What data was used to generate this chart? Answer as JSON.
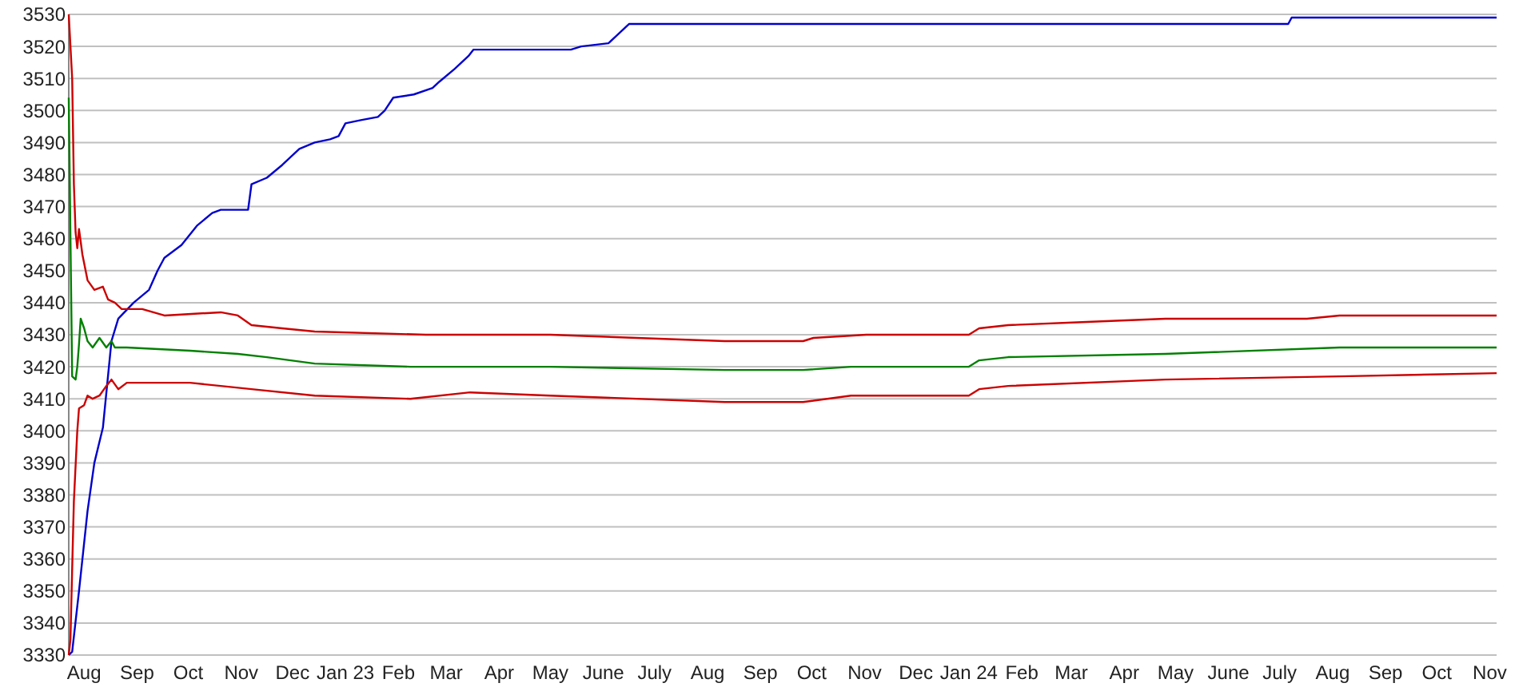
{
  "chart_data": {
    "type": "line",
    "grid": "y",
    "marker": "none",
    "line_style": "solid",
    "xlim": [
      "2022-07-23",
      "2024-11-05"
    ],
    "ylim": [
      3330,
      3530
    ],
    "yticks": [
      3330,
      3340,
      3350,
      3360,
      3370,
      3380,
      3390,
      3400,
      3410,
      3420,
      3430,
      3440,
      3450,
      3460,
      3470,
      3480,
      3490,
      3500,
      3510,
      3520,
      3530
    ],
    "xticks": [
      {
        "value": "2022-08-01",
        "label": "Aug"
      },
      {
        "value": "2022-09-01",
        "label": "Sep"
      },
      {
        "value": "2022-10-01",
        "label": "Oct"
      },
      {
        "value": "2022-11-01",
        "label": "Nov"
      },
      {
        "value": "2022-12-01",
        "label": "Dec"
      },
      {
        "value": "2023-01-01",
        "label": "Jan 23"
      },
      {
        "value": "2023-02-01",
        "label": "Feb"
      },
      {
        "value": "2023-03-01",
        "label": "Mar"
      },
      {
        "value": "2023-04-01",
        "label": "Apr"
      },
      {
        "value": "2023-05-01",
        "label": "May"
      },
      {
        "value": "2023-06-01",
        "label": "June"
      },
      {
        "value": "2023-07-01",
        "label": "July"
      },
      {
        "value": "2023-08-01",
        "label": "Aug"
      },
      {
        "value": "2023-09-01",
        "label": "Sep"
      },
      {
        "value": "2023-10-01",
        "label": "Oct"
      },
      {
        "value": "2023-11-01",
        "label": "Nov"
      },
      {
        "value": "2023-12-01",
        "label": "Dec"
      },
      {
        "value": "2024-01-01",
        "label": "Jan 24"
      },
      {
        "value": "2024-02-01",
        "label": "Feb"
      },
      {
        "value": "2024-03-01",
        "label": "Mar"
      },
      {
        "value": "2024-04-01",
        "label": "Apr"
      },
      {
        "value": "2024-05-01",
        "label": "May"
      },
      {
        "value": "2024-06-01",
        "label": "June"
      },
      {
        "value": "2024-07-01",
        "label": "July"
      },
      {
        "value": "2024-08-01",
        "label": "Aug"
      },
      {
        "value": "2024-09-01",
        "label": "Sep"
      },
      {
        "value": "2024-10-01",
        "label": "Oct"
      },
      {
        "value": "2024-11-01",
        "label": "Nov"
      }
    ],
    "series": [
      {
        "color": "#0000cc",
        "x": [
          "2022-07-23",
          "2022-07-25",
          "2022-07-29",
          "2022-08-03",
          "2022-08-07",
          "2022-08-12",
          "2022-08-17",
          "2022-08-21",
          "2022-08-30",
          "2022-09-08",
          "2022-09-13",
          "2022-09-17",
          "2022-09-27",
          "2022-10-06",
          "2022-10-15",
          "2022-10-20",
          "2022-11-05",
          "2022-11-07",
          "2022-11-16",
          "2022-11-25",
          "2022-12-05",
          "2022-12-14",
          "2022-12-23",
          "2022-12-28",
          "2023-01-01",
          "2023-01-10",
          "2023-01-20",
          "2023-01-24",
          "2023-01-29",
          "2023-02-10",
          "2023-02-21",
          "2023-02-25",
          "2023-03-06",
          "2023-03-14",
          "2023-03-17",
          "2023-05-13",
          "2023-05-19",
          "2023-06-04",
          "2023-06-08",
          "2023-06-14",
          "2023-06-16",
          "2024-07-06",
          "2024-07-08",
          "2024-11-05"
        ],
        "values": [
          3330,
          3331,
          3350,
          3375,
          3390,
          3401,
          3428,
          3435,
          3440,
          3444,
          3450,
          3454,
          3458,
          3464,
          3468,
          3469,
          3469,
          3477,
          3479,
          3483,
          3488,
          3490,
          3491,
          3492,
          3496,
          3497,
          3498,
          3500,
          3504,
          3505,
          3507,
          3509,
          3513,
          3517,
          3519,
          3519,
          3520,
          3521,
          3523,
          3526,
          3527,
          3527,
          3529,
          3529
        ]
      },
      {
        "color": "#cc0000",
        "x": [
          "2022-07-23",
          "2022-07-25",
          "2022-07-26",
          "2022-07-27",
          "2022-07-28",
          "2022-07-29",
          "2022-07-31",
          "2022-08-03",
          "2022-08-07",
          "2022-08-12",
          "2022-08-15",
          "2022-08-19",
          "2022-08-23",
          "2022-09-04",
          "2022-09-17",
          "2022-10-20",
          "2022-10-30",
          "2022-11-07",
          "2022-11-25",
          "2022-12-14",
          "2023-02-17",
          "2023-03-15",
          "2023-05-01",
          "2023-08-11",
          "2023-09-26",
          "2023-10-02",
          "2023-11-02",
          "2024-01-01",
          "2024-01-07",
          "2024-01-24",
          "2024-03-10",
          "2024-04-25",
          "2024-07-17",
          "2024-08-05",
          "2024-11-05"
        ],
        "values": [
          3530,
          3510,
          3477,
          3462,
          3457,
          3463,
          3455,
          3447,
          3444,
          3445,
          3441,
          3440,
          3438,
          3438,
          3436,
          3437,
          3436,
          3433,
          3432,
          3431,
          3430,
          3430,
          3430,
          3428,
          3428,
          3429,
          3430,
          3430,
          3432,
          3433,
          3434,
          3435,
          3435,
          3436,
          3436
        ]
      },
      {
        "color": "#008000",
        "x": [
          "2022-07-23",
          "2022-07-24",
          "2022-07-25",
          "2022-07-27",
          "2022-07-28",
          "2022-07-29",
          "2022-07-30",
          "2022-08-01",
          "2022-08-03",
          "2022-08-06",
          "2022-08-10",
          "2022-08-14",
          "2022-08-17",
          "2022-08-19",
          "2022-08-26",
          "2022-10-02",
          "2022-10-30",
          "2022-11-16",
          "2022-12-14",
          "2023-02-08",
          "2023-05-01",
          "2023-08-11",
          "2023-09-26",
          "2023-10-24",
          "2024-01-01",
          "2024-01-07",
          "2024-01-24",
          "2024-04-25",
          "2024-08-05",
          "2024-11-05"
        ],
        "values": [
          3504,
          3460,
          3417,
          3416,
          3420,
          3427,
          3435,
          3432,
          3428,
          3426,
          3429,
          3426,
          3428,
          3426,
          3426,
          3425,
          3424,
          3423,
          3421,
          3420,
          3420,
          3419,
          3419,
          3420,
          3420,
          3422,
          3423,
          3424,
          3426,
          3426
        ]
      },
      {
        "color": "#cc0000",
        "x": [
          "2022-07-23",
          "2022-07-24",
          "2022-07-25",
          "2022-07-26",
          "2022-07-28",
          "2022-07-29",
          "2022-08-01",
          "2022-08-03",
          "2022-08-06",
          "2022-08-10",
          "2022-08-14",
          "2022-08-17",
          "2022-08-21",
          "2022-08-26",
          "2022-10-02",
          "2022-10-20",
          "2022-11-07",
          "2022-12-14",
          "2023-02-08",
          "2023-03-15",
          "2023-05-01",
          "2023-08-11",
          "2023-09-26",
          "2023-10-24",
          "2024-01-01",
          "2024-01-07",
          "2024-01-24",
          "2024-04-25",
          "2024-08-05",
          "2024-11-05"
        ],
        "values": [
          3330,
          3335,
          3357,
          3378,
          3400,
          3407,
          3408,
          3411,
          3410,
          3411,
          3414,
          3416,
          3413,
          3415,
          3415,
          3414,
          3413,
          3411,
          3410,
          3412,
          3411,
          3409,
          3409,
          3411,
          3411,
          3413,
          3414,
          3416,
          3417,
          3418
        ]
      }
    ]
  }
}
